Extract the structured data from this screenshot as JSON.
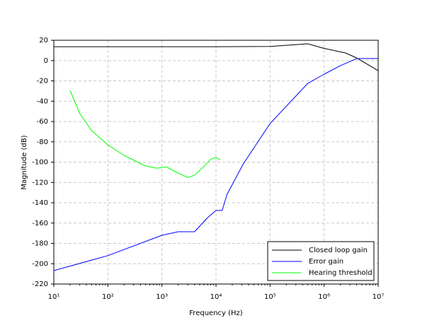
{
  "chart_data": {
    "type": "line",
    "xlabel": "Frequency (Hz)",
    "ylabel": "Magnitude (dB)",
    "xscale": "log",
    "grid": true,
    "legend": "lower right",
    "xlim": [
      10,
      10000000
    ],
    "ylim": [
      -220,
      20
    ],
    "xticks": [
      {
        "value": 10,
        "label": "10¹"
      },
      {
        "value": 100,
        "label": "10²"
      },
      {
        "value": 1000,
        "label": "10³"
      },
      {
        "value": 10000,
        "label": "10⁴"
      },
      {
        "value": 100000,
        "label": "10⁵"
      },
      {
        "value": 1000000,
        "label": "10⁶"
      },
      {
        "value": 10000000,
        "label": "10⁷"
      }
    ],
    "yticks": [
      20,
      0,
      -20,
      -40,
      -60,
      -80,
      -100,
      -120,
      -140,
      -160,
      -180,
      -200,
      -220
    ],
    "series": [
      {
        "name": "Closed loop gain",
        "color": "#000000",
        "x": [
          10,
          100,
          1000,
          10000,
          100000,
          500000,
          1000000,
          2500000,
          4000000,
          10000000
        ],
        "values": [
          13.7,
          13.7,
          13.7,
          13.7,
          13.9,
          16.5,
          12,
          7.5,
          2.6,
          -10
        ]
      },
      {
        "name": "Error gain",
        "color": "#0000ff",
        "x": [
          10,
          100,
          1000,
          2000,
          4000,
          5000,
          7000,
          10000,
          13000,
          16000,
          32000,
          100000,
          500000,
          1000000,
          2000000,
          4000000,
          10000000
        ],
        "values": [
          -206.8,
          -192,
          -172,
          -168.5,
          -168.5,
          -163,
          -154.6,
          -147.6,
          -147.6,
          -131.7,
          -101.7,
          -62,
          -22.4,
          -13.4,
          -5,
          2,
          2
        ]
      },
      {
        "name": "Hearing threshold",
        "color": "#00ff00",
        "x": [
          20,
          30,
          50,
          100,
          200,
          500,
          800,
          1200,
          1500,
          2000,
          3000,
          4000,
          6000,
          8000,
          10000,
          12000
        ],
        "values": [
          -29.4,
          -51.7,
          -69,
          -83,
          -93.4,
          -103.8,
          -106,
          -104.6,
          -107.3,
          -110.8,
          -115,
          -113,
          -104,
          -97,
          -95.5,
          -97.7
        ]
      }
    ]
  }
}
